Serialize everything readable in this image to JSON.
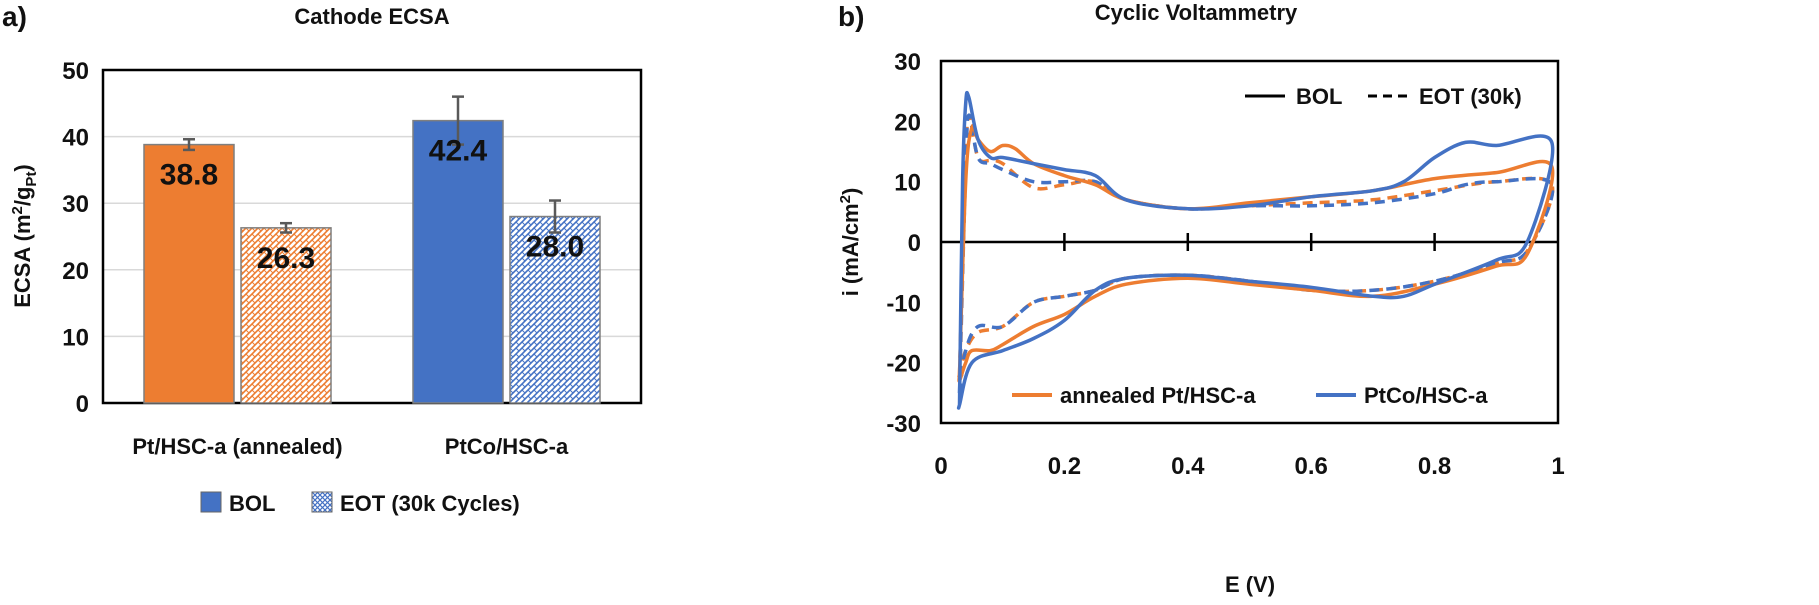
{
  "panel_a": {
    "tag": "a)",
    "chart_data": {
      "type": "bar",
      "title": "Cathode ECSA",
      "ylabel_main": "ECSA (m",
      "ylabel_sup": "2",
      "ylabel_mid": "/g",
      "ylabel_sub": "Pt",
      "ylabel_end": ")",
      "ylim": [
        0,
        50
      ],
      "yticks": [
        0,
        10,
        20,
        30,
        40,
        50
      ],
      "grid": true,
      "categories": [
        "Pt/HSC-a (annealed)",
        "PtCo/HSC-a"
      ],
      "series": [
        {
          "name": "BOL",
          "values": [
            38.8,
            42.4
          ],
          "errors": [
            0.8,
            3.6
          ],
          "colors": [
            "#ed7d31",
            "#4472c4"
          ],
          "fill": "solid"
        },
        {
          "name": "EOT (30k Cycles)",
          "values": [
            26.3,
            28.0
          ],
          "errors": [
            0.7,
            2.4
          ],
          "colors": [
            "#ed7d31",
            "#4472c4"
          ],
          "fill": "hatched"
        }
      ],
      "data_labels": [
        "38.8",
        "26.3",
        "42.4",
        "28.0"
      ],
      "legend": {
        "placement": "bottom",
        "items": [
          "BOL",
          "EOT (30k Cycles)"
        ]
      }
    }
  },
  "panel_b": {
    "tag": "b)",
    "chart_data": {
      "type": "line",
      "title": "Cyclic Voltammetry",
      "xlabel": "E (V)",
      "ylabel_main": "i (mA/cm",
      "ylabel_sup": "2",
      "ylabel_end": ")",
      "xlim": [
        0,
        1
      ],
      "ylim": [
        -30,
        30
      ],
      "xticks": [
        "0",
        "0.2",
        "0.4",
        "0.6",
        "0.8",
        "1"
      ],
      "yticks": [
        "-30",
        "-20",
        "-10",
        "0",
        "10",
        "20",
        "30"
      ],
      "legend_style": {
        "items": [
          "BOL",
          "EOT (30k)"
        ],
        "placement": "top-right"
      },
      "legend_material": {
        "items": [
          "annealed Pt/HSC-a",
          "PtCo/HSC-a"
        ],
        "placement": "bottom"
      },
      "colors": {
        "annealed Pt/HSC-a": "#ed7d31",
        "PtCo/HSC-a": "#4472c4"
      },
      "series": [
        {
          "name": "annealed Pt/HSC-a BOL",
          "style": "solid",
          "color": "#ed7d31",
          "anodic": [
            [
              0.03,
              -22
            ],
            [
              0.04,
              10
            ],
            [
              0.05,
              19
            ],
            [
              0.06,
              17
            ],
            [
              0.08,
              15
            ],
            [
              0.1,
              16
            ],
            [
              0.12,
              15.5
            ],
            [
              0.15,
              13
            ],
            [
              0.2,
              11
            ],
            [
              0.25,
              9.5
            ],
            [
              0.3,
              7
            ],
            [
              0.4,
              5.5
            ],
            [
              0.5,
              6.5
            ],
            [
              0.6,
              7.5
            ],
            [
              0.7,
              8.5
            ],
            [
              0.8,
              10.5
            ],
            [
              0.9,
              11.5
            ],
            [
              0.99,
              12.5
            ]
          ],
          "cathodic": [
            [
              0.99,
              6
            ],
            [
              0.95,
              -2
            ],
            [
              0.9,
              -4
            ],
            [
              0.8,
              -7
            ],
            [
              0.7,
              -9
            ],
            [
              0.6,
              -8
            ],
            [
              0.5,
              -7
            ],
            [
              0.4,
              -6
            ],
            [
              0.3,
              -7
            ],
            [
              0.25,
              -9
            ],
            [
              0.2,
              -12
            ],
            [
              0.15,
              -14
            ],
            [
              0.1,
              -17
            ],
            [
              0.08,
              -18
            ],
            [
              0.05,
              -18
            ],
            [
              0.04,
              -20
            ],
            [
              0.03,
              -23
            ]
          ]
        },
        {
          "name": "PtCo/HSC-a BOL",
          "style": "solid",
          "color": "#4472c4",
          "anodic": [
            [
              0.03,
              -27
            ],
            [
              0.035,
              10
            ],
            [
              0.04,
              23
            ],
            [
              0.045,
              24
            ],
            [
              0.06,
              17
            ],
            [
              0.08,
              14
            ],
            [
              0.1,
              14
            ],
            [
              0.15,
              13
            ],
            [
              0.2,
              12
            ],
            [
              0.25,
              11
            ],
            [
              0.3,
              7
            ],
            [
              0.4,
              5.5
            ],
            [
              0.5,
              6
            ],
            [
              0.6,
              7.5
            ],
            [
              0.7,
              8.5
            ],
            [
              0.75,
              10
            ],
            [
              0.8,
              14
            ],
            [
              0.85,
              16.5
            ],
            [
              0.9,
              16
            ],
            [
              0.99,
              16.5
            ]
          ],
          "cathodic": [
            [
              0.99,
              2
            ],
            [
              0.95,
              0
            ],
            [
              0.9,
              -3
            ],
            [
              0.8,
              -7
            ],
            [
              0.75,
              -9
            ],
            [
              0.7,
              -9
            ],
            [
              0.6,
              -7.5
            ],
            [
              0.5,
              -6.5
            ],
            [
              0.4,
              -5.5
            ],
            [
              0.3,
              -6
            ],
            [
              0.25,
              -8
            ],
            [
              0.2,
              -13
            ],
            [
              0.15,
              -16
            ],
            [
              0.1,
              -18
            ],
            [
              0.05,
              -20
            ],
            [
              0.03,
              -27
            ]
          ]
        },
        {
          "name": "annealed Pt/HSC-a EOT",
          "style": "dashed",
          "color": "#ed7d31",
          "anodic": [
            [
              0.03,
              -22
            ],
            [
              0.04,
              12
            ],
            [
              0.045,
              21
            ],
            [
              0.06,
              14
            ],
            [
              0.08,
              13.5
            ],
            [
              0.1,
              13
            ],
            [
              0.15,
              9
            ],
            [
              0.2,
              9.5
            ],
            [
              0.25,
              10
            ],
            [
              0.3,
              7
            ],
            [
              0.4,
              5.5
            ],
            [
              0.5,
              6
            ],
            [
              0.6,
              6.5
            ],
            [
              0.7,
              7
            ],
            [
              0.8,
              8.5
            ],
            [
              0.9,
              10
            ],
            [
              0.99,
              9.5
            ]
          ],
          "cathodic": [
            [
              0.99,
              0
            ],
            [
              0.95,
              -1.5
            ],
            [
              0.9,
              -3.5
            ],
            [
              0.8,
              -6.5
            ],
            [
              0.7,
              -8
            ],
            [
              0.6,
              -8
            ],
            [
              0.5,
              -6.5
            ],
            [
              0.4,
              -5.5
            ],
            [
              0.3,
              -6
            ],
            [
              0.25,
              -8
            ],
            [
              0.2,
              -9
            ],
            [
              0.15,
              -10
            ],
            [
              0.1,
              -14
            ],
            [
              0.06,
              -15
            ],
            [
              0.04,
              -18
            ],
            [
              0.03,
              -22
            ]
          ]
        },
        {
          "name": "PtCo/HSC-a EOT",
          "style": "dashed",
          "color": "#4472c4",
          "anodic": [
            [
              0.03,
              -25
            ],
            [
              0.04,
              12
            ],
            [
              0.045,
              21
            ],
            [
              0.06,
              14
            ],
            [
              0.08,
              13
            ],
            [
              0.1,
              12
            ],
            [
              0.15,
              10
            ],
            [
              0.2,
              10
            ],
            [
              0.25,
              10
            ],
            [
              0.3,
              7
            ],
            [
              0.4,
              5.5
            ],
            [
              0.5,
              6
            ],
            [
              0.6,
              6
            ],
            [
              0.7,
              6.5
            ],
            [
              0.8,
              8
            ],
            [
              0.85,
              9.5
            ],
            [
              0.9,
              10
            ],
            [
              0.99,
              9.5
            ]
          ],
          "cathodic": [
            [
              0.99,
              0
            ],
            [
              0.95,
              -1.5
            ],
            [
              0.9,
              -3.5
            ],
            [
              0.8,
              -6.5
            ],
            [
              0.7,
              -8
            ],
            [
              0.6,
              -8
            ],
            [
              0.5,
              -6.5
            ],
            [
              0.4,
              -5.5
            ],
            [
              0.3,
              -6
            ],
            [
              0.25,
              -8
            ],
            [
              0.2,
              -9
            ],
            [
              0.15,
              -10
            ],
            [
              0.1,
              -14
            ],
            [
              0.06,
              -14
            ],
            [
              0.04,
              -18
            ],
            [
              0.03,
              -25
            ]
          ]
        }
      ]
    }
  }
}
